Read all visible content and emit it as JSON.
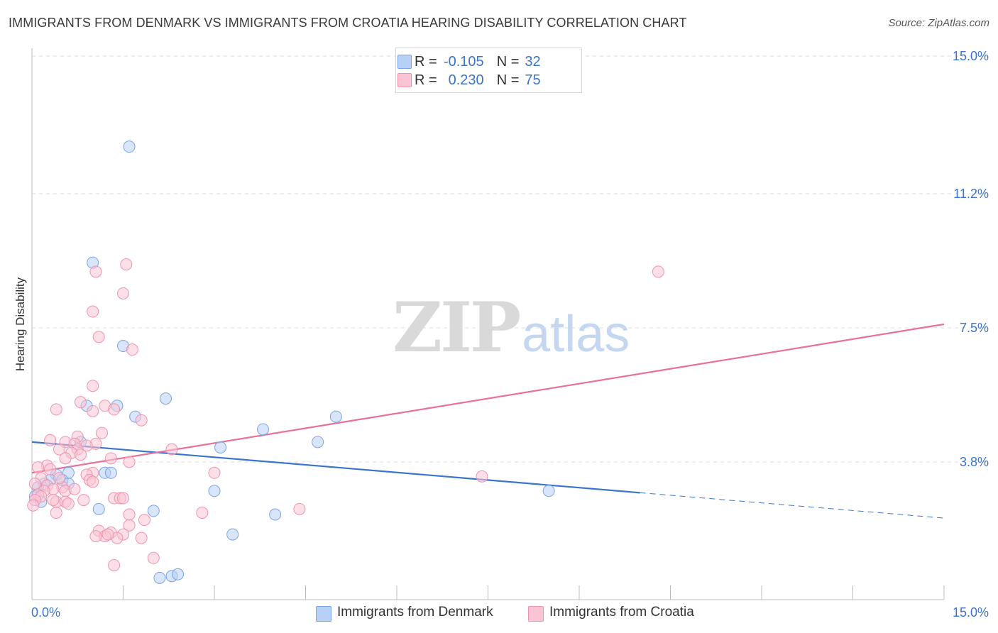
{
  "title": "IMMIGRANTS FROM DENMARK VS IMMIGRANTS FROM CROATIA HEARING DISABILITY CORRELATION CHART",
  "source": "Source: ZipAtlas.com",
  "watermark": {
    "zip": "ZIP",
    "atlas": "atlas"
  },
  "legend": {
    "r_label": "R =",
    "n_label": "N =",
    "rows": [
      {
        "r": "-0.105",
        "n": "32"
      },
      {
        "r": "0.230",
        "n": "75"
      }
    ]
  },
  "bottom_legend": [
    "Immigrants from Denmark",
    "Immigrants from Croatia"
  ],
  "colors": {
    "blue": "#3b74cc",
    "blue_fill": "#b8d0f5",
    "pink": "#e8709a",
    "pink_fill": "#fbc4d4",
    "grid": "#dddddd"
  },
  "chart_data": {
    "type": "scatter",
    "title": "IMMIGRANTS FROM DENMARK VS IMMIGRANTS FROM CROATIA HEARING DISABILITY CORRELATION CHART",
    "xlabel": "",
    "ylabel": "Hearing Disability",
    "xlim": [
      0,
      15
    ],
    "ylim": [
      0,
      15
    ],
    "x_tick_labels": [
      "0.0%",
      "15.0%"
    ],
    "y_tick_values": [
      3.8,
      7.5,
      11.2,
      15.0
    ],
    "y_tick_labels": [
      "3.8%",
      "7.5%",
      "11.2%",
      "15.0%"
    ],
    "series": [
      {
        "name": "Immigrants from Denmark",
        "r": -0.105,
        "n": 32,
        "trend": {
          "x0": 0.0,
          "y0": 4.35,
          "x1": 15.0,
          "y1": 2.25,
          "solid_until": 10.0
        },
        "points": [
          [
            1.6,
            12.5
          ],
          [
            1.0,
            9.3
          ],
          [
            1.5,
            7.0
          ],
          [
            2.2,
            5.55
          ],
          [
            0.9,
            5.35
          ],
          [
            1.4,
            5.35
          ],
          [
            1.7,
            5.05
          ],
          [
            5.0,
            5.05
          ],
          [
            3.8,
            4.7
          ],
          [
            0.8,
            4.35
          ],
          [
            4.7,
            4.35
          ],
          [
            3.1,
            4.2
          ],
          [
            0.6,
            3.5
          ],
          [
            0.4,
            3.45
          ],
          [
            1.2,
            3.5
          ],
          [
            1.3,
            3.5
          ],
          [
            0.3,
            3.3
          ],
          [
            0.5,
            3.3
          ],
          [
            0.2,
            3.2
          ],
          [
            0.6,
            3.2
          ],
          [
            0.1,
            3.1
          ],
          [
            3.0,
            3.0
          ],
          [
            8.5,
            3.0
          ],
          [
            0.05,
            2.85
          ],
          [
            1.1,
            2.5
          ],
          [
            2.0,
            2.45
          ],
          [
            4.0,
            2.35
          ],
          [
            3.3,
            1.8
          ],
          [
            2.1,
            0.6
          ],
          [
            2.3,
            0.65
          ],
          [
            2.4,
            0.7
          ],
          [
            0.15,
            2.7
          ]
        ]
      },
      {
        "name": "Immigrants from Croatia",
        "r": 0.23,
        "n": 75,
        "trend": {
          "x0": 0.0,
          "y0": 3.5,
          "x1": 15.0,
          "y1": 7.6,
          "solid_until": 15.0
        },
        "points": [
          [
            1.55,
            9.25
          ],
          [
            1.05,
            9.05
          ],
          [
            10.3,
            9.05
          ],
          [
            1.5,
            8.45
          ],
          [
            1.0,
            7.95
          ],
          [
            1.1,
            7.25
          ],
          [
            1.65,
            6.9
          ],
          [
            1.0,
            5.9
          ],
          [
            0.8,
            5.45
          ],
          [
            1.2,
            5.35
          ],
          [
            0.4,
            5.25
          ],
          [
            1.0,
            5.2
          ],
          [
            1.35,
            5.25
          ],
          [
            1.8,
            4.95
          ],
          [
            1.15,
            4.6
          ],
          [
            0.75,
            4.5
          ],
          [
            0.3,
            4.4
          ],
          [
            0.55,
            4.35
          ],
          [
            0.7,
            4.3
          ],
          [
            1.05,
            4.3
          ],
          [
            0.9,
            4.25
          ],
          [
            0.45,
            4.15
          ],
          [
            0.75,
            4.15
          ],
          [
            2.3,
            4.15
          ],
          [
            0.65,
            4.05
          ],
          [
            0.8,
            4.0
          ],
          [
            0.55,
            3.9
          ],
          [
            1.3,
            3.9
          ],
          [
            1.6,
            3.8
          ],
          [
            0.25,
            3.7
          ],
          [
            0.1,
            3.65
          ],
          [
            0.3,
            3.6
          ],
          [
            1.0,
            3.5
          ],
          [
            0.9,
            3.45
          ],
          [
            3.0,
            3.5
          ],
          [
            7.4,
            3.4
          ],
          [
            0.15,
            3.35
          ],
          [
            0.95,
            3.3
          ],
          [
            1.0,
            3.25
          ],
          [
            0.05,
            3.2
          ],
          [
            0.25,
            3.15
          ],
          [
            0.5,
            3.1
          ],
          [
            0.35,
            3.05
          ],
          [
            0.55,
            3.0
          ],
          [
            0.2,
            3.0
          ],
          [
            0.1,
            2.9
          ],
          [
            0.15,
            2.85
          ],
          [
            1.35,
            2.8
          ],
          [
            1.45,
            2.8
          ],
          [
            0.05,
            2.75
          ],
          [
            0.4,
            2.7
          ],
          [
            0.55,
            2.7
          ],
          [
            0.6,
            2.65
          ],
          [
            0.02,
            2.6
          ],
          [
            4.4,
            2.5
          ],
          [
            0.4,
            2.4
          ],
          [
            1.6,
            2.35
          ],
          [
            2.8,
            2.4
          ],
          [
            1.85,
            2.2
          ],
          [
            1.6,
            2.05
          ],
          [
            1.1,
            1.9
          ],
          [
            1.3,
            1.85
          ],
          [
            1.5,
            1.8
          ],
          [
            1.2,
            1.75
          ],
          [
            1.05,
            1.75
          ],
          [
            1.4,
            1.7
          ],
          [
            1.8,
            1.7
          ],
          [
            0.7,
            3.05
          ],
          [
            0.45,
            3.35
          ],
          [
            1.25,
            1.8
          ],
          [
            0.85,
            2.75
          ],
          [
            2.0,
            1.15
          ],
          [
            1.35,
            0.95
          ],
          [
            0.35,
            2.75
          ],
          [
            1.5,
            2.8
          ]
        ]
      }
    ]
  }
}
